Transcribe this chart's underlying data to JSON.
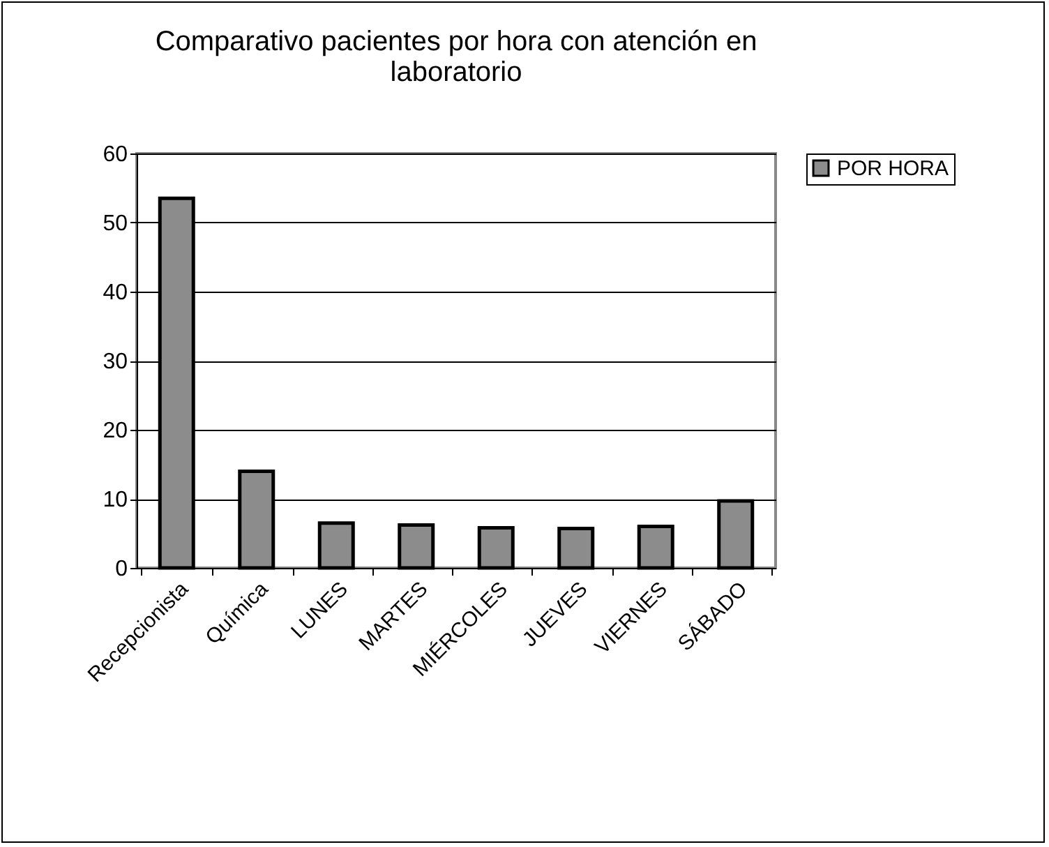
{
  "chart_data": {
    "type": "bar",
    "title": [
      "Comparativo pacientes por hora con atención en",
      "laboratorio"
    ],
    "categories": [
      "Recepcionista",
      "Química",
      "LUNES",
      "MARTES",
      "MIÉRCOLES",
      "JUEVES",
      "VIERNES",
      "SÁBADO"
    ],
    "series": [
      {
        "name": "POR HORA",
        "color": "#8c8c8c",
        "values": [
          53.5,
          14.0,
          6.5,
          6.2,
          5.8,
          5.7,
          6.0,
          9.7
        ]
      }
    ],
    "ylim": [
      0,
      60
    ],
    "yticks": [
      0,
      10,
      20,
      30,
      40,
      50,
      60
    ],
    "grid": "y",
    "legend": "right"
  }
}
